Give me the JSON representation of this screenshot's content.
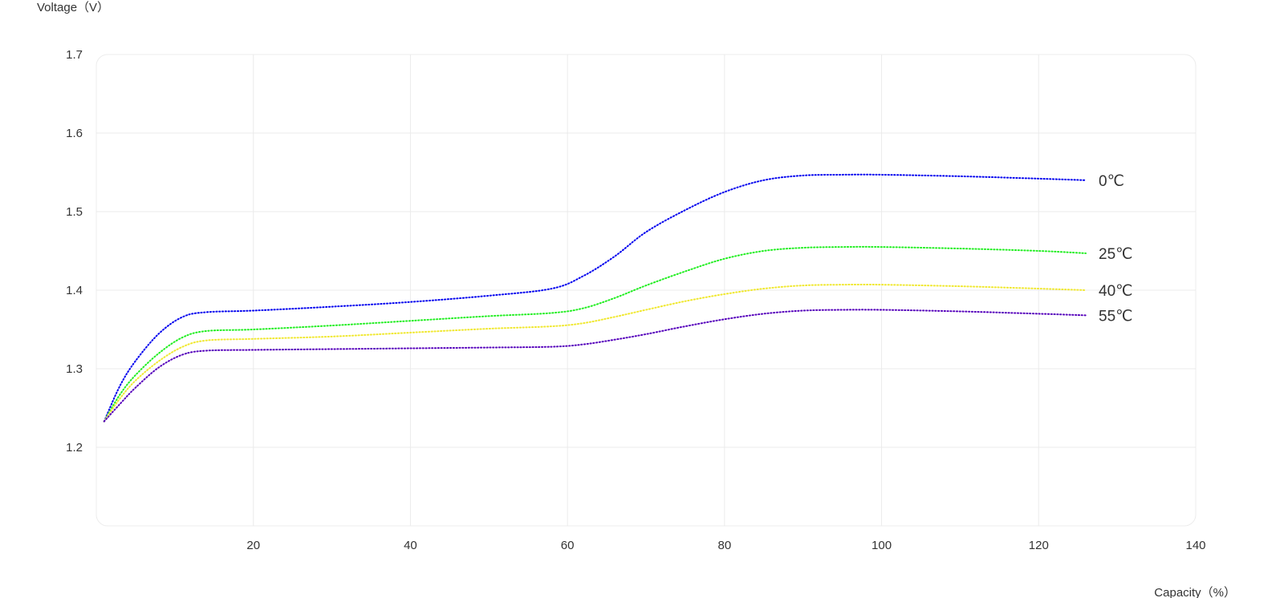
{
  "chart_data": {
    "type": "line",
    "ylabel": "Voltage（V）",
    "xlabel": "Capacity（%）",
    "xlim": [
      0,
      140
    ],
    "ylim": [
      1.1,
      1.7
    ],
    "xticks": [
      20,
      40,
      60,
      80,
      100,
      120,
      140
    ],
    "yticks": [
      1.2,
      1.3,
      1.4,
      1.5,
      1.6,
      1.7
    ],
    "ytick_labels": [
      "1.2",
      "1.3",
      "1.4",
      "1.5",
      "1.6",
      "1.7"
    ],
    "grid": true,
    "series": [
      {
        "name": "0℃",
        "color": "#0000ee",
        "x": [
          1,
          3,
          5,
          8,
          11,
          14,
          20,
          30,
          40,
          50,
          58,
          62,
          66,
          70,
          75,
          80,
          85,
          90,
          95,
          100,
          110,
          120,
          126
        ],
        "y": [
          1.233,
          1.278,
          1.31,
          1.345,
          1.366,
          1.372,
          1.374,
          1.379,
          1.385,
          1.393,
          1.402,
          1.418,
          1.443,
          1.474,
          1.502,
          1.525,
          1.54,
          1.546,
          1.547,
          1.547,
          1.545,
          1.542,
          1.54
        ]
      },
      {
        "name": "25℃",
        "color": "#22ee22",
        "x": [
          1,
          3,
          5,
          8,
          11,
          14,
          20,
          30,
          40,
          50,
          58,
          62,
          66,
          70,
          75,
          80,
          85,
          90,
          95,
          100,
          110,
          120,
          126
        ],
        "y": [
          1.233,
          1.267,
          1.292,
          1.32,
          1.34,
          1.348,
          1.35,
          1.355,
          1.361,
          1.367,
          1.371,
          1.377,
          1.39,
          1.406,
          1.424,
          1.44,
          1.45,
          1.454,
          1.455,
          1.455,
          1.453,
          1.45,
          1.447
        ]
      },
      {
        "name": "40℃",
        "color": "#f0e830",
        "x": [
          1,
          3,
          5,
          8,
          11,
          14,
          20,
          30,
          40,
          50,
          58,
          62,
          66,
          70,
          75,
          80,
          85,
          90,
          95,
          100,
          110,
          120,
          126
        ],
        "y": [
          1.233,
          1.262,
          1.285,
          1.31,
          1.328,
          1.336,
          1.338,
          1.341,
          1.346,
          1.351,
          1.354,
          1.358,
          1.366,
          1.375,
          1.386,
          1.395,
          1.402,
          1.406,
          1.407,
          1.407,
          1.405,
          1.402,
          1.4
        ]
      },
      {
        "name": "55℃",
        "color": "#5500bb",
        "x": [
          1,
          3,
          5,
          8,
          11,
          14,
          20,
          30,
          40,
          50,
          58,
          62,
          66,
          70,
          75,
          80,
          85,
          90,
          95,
          100,
          110,
          120,
          126
        ],
        "y": [
          1.233,
          1.255,
          1.276,
          1.302,
          1.318,
          1.323,
          1.324,
          1.325,
          1.326,
          1.327,
          1.328,
          1.331,
          1.337,
          1.344,
          1.354,
          1.363,
          1.37,
          1.374,
          1.375,
          1.375,
          1.373,
          1.37,
          1.368
        ]
      }
    ]
  }
}
